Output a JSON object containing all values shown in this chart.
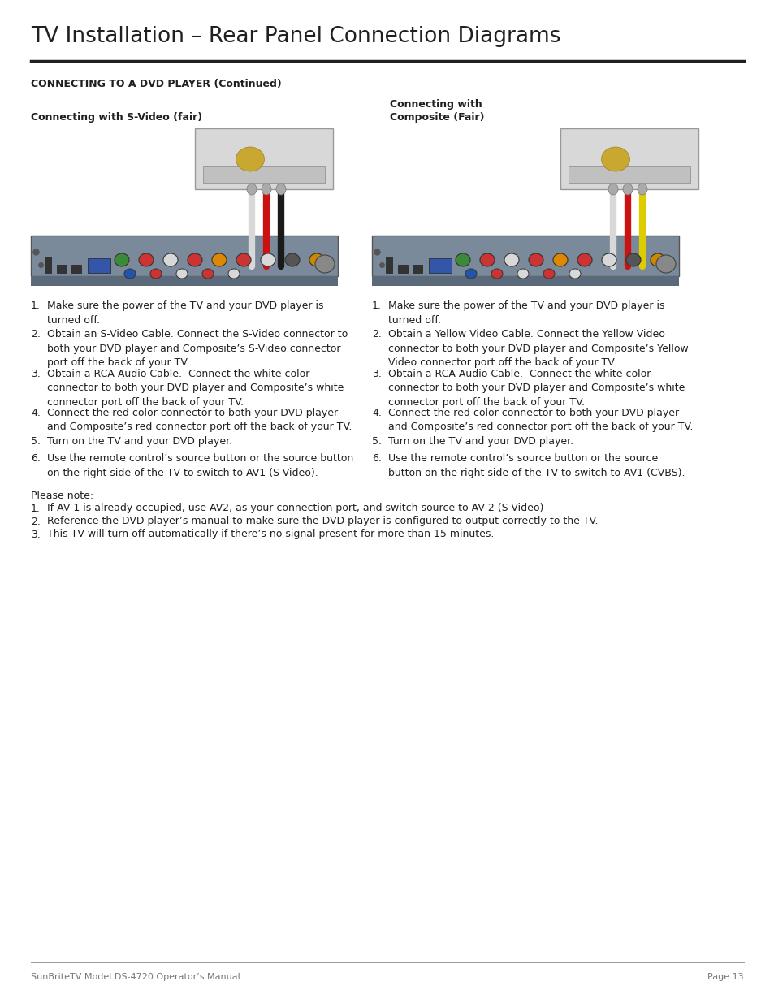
{
  "title": "TV Installation – Rear Panel Connection Diagrams",
  "section_header": "CONNECTING TO A DVD PLAYER (Continued)",
  "left_subtitle": "Connecting with S-Video (fair)",
  "right_subtitle": "Connecting with\nComposite (Fair)",
  "left_steps": [
    "Make sure the power of the TV and your DVD player is\nturned off.",
    "Obtain an S-Video Cable. Connect the S-Video connector to\nboth your DVD player and Composite’s S-Video connector\nport off the back of your TV.",
    "Obtain a RCA Audio Cable.  Connect the white color\nconnector to both your DVD player and Composite’s white\nconnector port off the back of your TV.",
    "Connect the red color connector to both your DVD player\nand Composite’s red connector port off the back of your TV.",
    "Turn on the TV and your DVD player.",
    "Use the remote control’s source button or the source button\non the right side of the TV to switch to AV1 (S-Video)."
  ],
  "right_steps": [
    "Make sure the power of the TV and your DVD player is\nturned off.",
    "Obtain a Yellow Video Cable. Connect the Yellow Video\nconnector to both your DVD player and Composite’s Yellow\nVideo connector port off the back of your TV.",
    "Obtain a RCA Audio Cable.  Connect the white color\nconnector to both your DVD player and Composite’s white\nconnector port off the back of your TV.",
    "Connect the red color connector to both your DVD player\nand Composite’s red connector port off the back of your TV.",
    "Turn on the TV and your DVD player.",
    "Use the remote control’s source button or the source\nbutton on the right side of the TV to switch to AV1 (CVBS)."
  ],
  "please_note_header": "Please note:",
  "please_note_items": [
    "If AV 1 is already occupied, use AV2, as your connection port, and switch source to AV 2 (S-Video)",
    "Reference the DVD player’s manual to make sure the DVD player is configured to output correctly to the TV.",
    "This TV will turn off automatically if there’s no signal present for more than 15 minutes."
  ],
  "footer_left": "SunBriteTV Model DS-4720 Operator’s Manual",
  "footer_right": "Page 13",
  "bg_color": "#ffffff",
  "text_color": "#231f20",
  "title_fontsize": 19,
  "section_fontsize": 9,
  "subtitle_fontsize": 9,
  "body_fontsize": 9,
  "footer_fontsize": 8
}
